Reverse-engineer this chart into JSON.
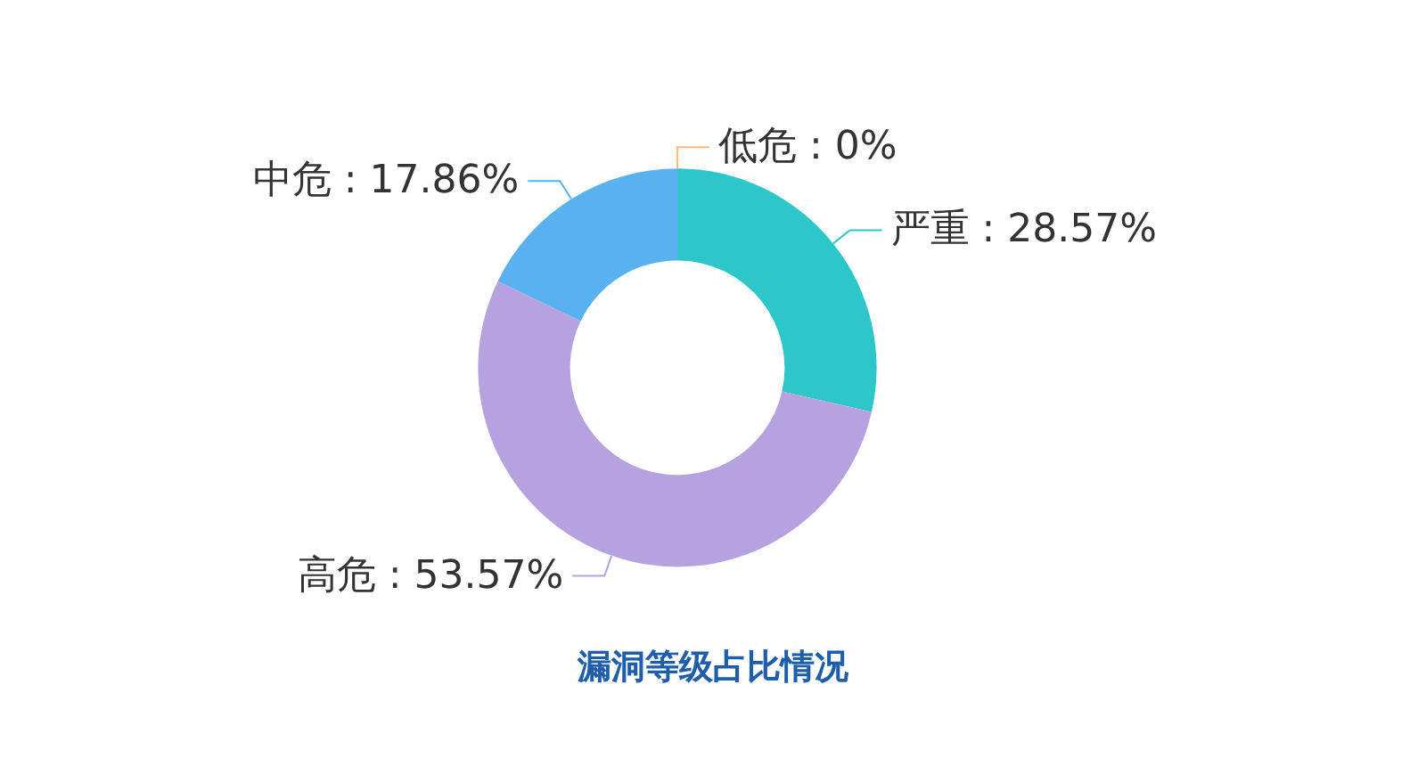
{
  "chart_data": {
    "type": "donut",
    "title": "漏洞等级占比情况",
    "categories": [
      "严重",
      "高危",
      "中危",
      "低危"
    ],
    "values": [
      28.57,
      53.57,
      17.86,
      0
    ],
    "value_labels": [
      "28.57%",
      "53.57%",
      "17.86%",
      "0%"
    ],
    "colors": [
      "#2ec7c9",
      "#b6a2de",
      "#5ab1ef",
      "#ffb980"
    ]
  }
}
